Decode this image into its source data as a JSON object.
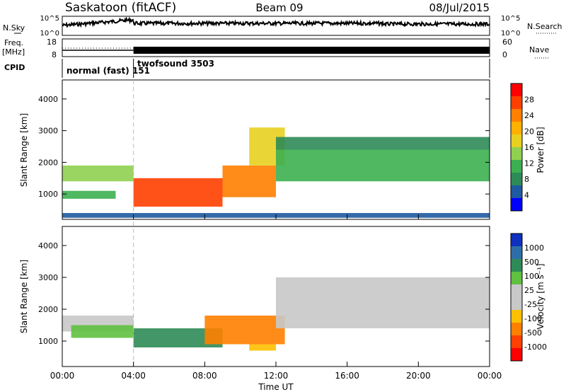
{
  "header": {
    "station": "Saskatoon (fitACF)",
    "beam": "Beam 09",
    "date": "08/Jul/2015"
  },
  "top_panels": {
    "nsky_label": "N.Sky",
    "nsearch_label": "N.Search",
    "nsky_ticks": [
      "10^5",
      "10^0"
    ],
    "nsearch_ticks": [
      "10^5",
      "10^0"
    ],
    "freq_label": "Freq.",
    "freq_unit": "[MHz]",
    "freq_ticks": [
      "18",
      "8"
    ],
    "nave_label": "Nave",
    "nave_ticks": [
      "60",
      "0"
    ],
    "cpid_label": "CPID",
    "cpid_modes": [
      {
        "label": "normal (fast) 151",
        "start_hour": 0,
        "end_hour": 4
      },
      {
        "label": "twofsound 3503",
        "start_hour": 4,
        "end_hour": 24
      }
    ]
  },
  "power_colorbar": {
    "label": "Power [dB]",
    "ticks": [
      "28",
      "24",
      "20",
      "16",
      "12",
      "8",
      "4"
    ],
    "colors": [
      "#ff0000",
      "#ff3f00",
      "#ff8000",
      "#ffb000",
      "#e8d020",
      "#90d050",
      "#3cb050",
      "#2e8b57",
      "#1e5aa0",
      "#0000ff"
    ]
  },
  "velocity_colorbar": {
    "label": "Velocity [m s⁻¹]",
    "ticks": [
      "1000",
      "500",
      "100",
      "25",
      "-25",
      "-100",
      "-500",
      "-1000"
    ],
    "colors": [
      "#1030c0",
      "#2e6ea8",
      "#2e8b57",
      "#60c040",
      "#c8c8c8",
      "#c8c8c8",
      "#ffc000",
      "#ff8000",
      "#ff4000",
      "#ff0000"
    ]
  },
  "chart_data": [
    {
      "type": "heatmap",
      "name": "power",
      "ylabel": "Slant Range [km]",
      "ylim": [
        200,
        4600
      ],
      "xlim": [
        0,
        24
      ],
      "yticks": [
        "4000",
        "3000",
        "2000",
        "1000"
      ],
      "ytick_values": [
        4000,
        3000,
        2000,
        1000
      ],
      "bands": [
        {
          "t0": 0.0,
          "t1": 4.0,
          "r0": 1400,
          "r1": 1900,
          "value": 14
        },
        {
          "t0": 0.0,
          "t1": 3.0,
          "r0": 850,
          "r1": 1100,
          "value": 12
        },
        {
          "t0": 4.0,
          "t1": 9.0,
          "r0": 600,
          "r1": 1500,
          "value": 28
        },
        {
          "t0": 9.0,
          "t1": 12.0,
          "r0": 900,
          "r1": 1900,
          "value": 24
        },
        {
          "t0": 10.5,
          "t1": 12.5,
          "r0": 1900,
          "r1": 3100,
          "value": 18
        },
        {
          "t0": 12.0,
          "t1": 24.0,
          "r0": 1400,
          "r1": 2400,
          "value": 12
        },
        {
          "t0": 12.0,
          "t1": 24.0,
          "r0": 2400,
          "r1": 2800,
          "value": 10
        },
        {
          "t0": 0.0,
          "t1": 24.0,
          "r0": 250,
          "r1": 400,
          "value": 6
        }
      ]
    },
    {
      "type": "heatmap",
      "name": "velocity",
      "ylabel": "Slant Range [km]",
      "ylim": [
        200,
        4600
      ],
      "xlim": [
        0,
        24
      ],
      "yticks": [
        "4000",
        "3000",
        "2000",
        "1000"
      ],
      "ytick_values": [
        4000,
        3000,
        2000,
        1000
      ],
      "bands": [
        {
          "t0": 0.0,
          "t1": 4.0,
          "r0": 1300,
          "r1": 1800,
          "value": 0
        },
        {
          "t0": 0.5,
          "t1": 4.0,
          "r0": 1100,
          "r1": 1500,
          "value": 80
        },
        {
          "t0": 4.0,
          "t1": 9.0,
          "r0": 800,
          "r1": 1400,
          "value": 300
        },
        {
          "t0": 8.0,
          "t1": 12.5,
          "r0": 900,
          "r1": 1800,
          "value": -150
        },
        {
          "t0": 10.5,
          "t1": 12.0,
          "r0": 700,
          "r1": 900,
          "value": -60
        },
        {
          "t0": 12.0,
          "t1": 24.0,
          "r0": 1400,
          "r1": 3000,
          "value": 0
        }
      ]
    }
  ],
  "x_axis": {
    "label": "Time UT",
    "ticks": [
      "00:00",
      "04:00",
      "08:00",
      "12:00",
      "16:00",
      "20:00",
      "00:00"
    ],
    "tick_hours": [
      0,
      4,
      8,
      12,
      16,
      20,
      24
    ]
  }
}
